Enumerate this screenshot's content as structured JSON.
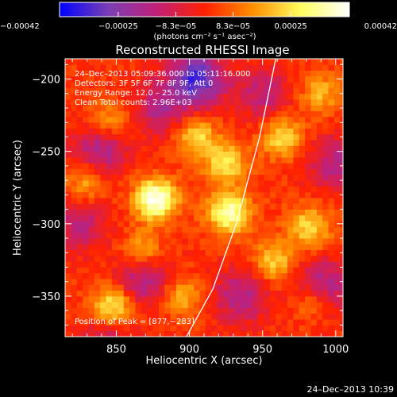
{
  "chart_data": {
    "type": "heatmap",
    "title": "Reconstructed RHESSI Image",
    "xlabel": "Heliocentric X (arcsec)",
    "ylabel": "Heliocentric Y (arcsec)",
    "xlim": [
      815,
      1005
    ],
    "ylim": [
      -378,
      -186
    ],
    "x_ticks": [
      850,
      900,
      950,
      1000
    ],
    "x_tick_labels": [
      "850",
      "900",
      "950",
      "1000"
    ],
    "y_ticks": [
      -200,
      -250,
      -300,
      -350
    ],
    "y_tick_labels": [
      "−200",
      "−250",
      "−300",
      "−350"
    ],
    "colorbar": {
      "min": -0.00042,
      "max": 0.00042,
      "ticks": [
        -0.00042,
        -0.00025,
        -8.3e-05,
        8.3e-05,
        0.00025,
        0.00042
      ],
      "tick_labels": [
        "−0.00042",
        "−0.00025",
        "−8.3e−05",
        "8.3e−05",
        "0.00025",
        "0.00042"
      ],
      "unit_label": "(photons cm⁻² s⁻¹ asec⁻²)",
      "colors": [
        "#0000ff",
        "#7a3fb6",
        "#c0207a",
        "#ff2000",
        "#ff9000",
        "#ffff60",
        "#ffffff"
      ]
    },
    "annotations": {
      "time_range": "24–Dec–2013 05:09:36.000 to 05:11:16.000",
      "detectors": "Detectors: 3F 5F 6F 7F 8F 9F, Att 0",
      "energy": "Energy Range: 12.0 – 25.0 keV",
      "clean": "Clean    Total counts: 2.96E+03",
      "peak": "Position of Peak = [877,−283]"
    },
    "limb_curve": {
      "x": [
        959,
        948,
        932,
        916,
        898
      ],
      "y": [
        -186,
        -240,
        -300,
        -345,
        -378
      ]
    },
    "emission_sources": [
      {
        "x": 877,
        "y": -283,
        "amplitude": 1.0
      },
      {
        "x": 927,
        "y": -292,
        "amplitude": 0.85
      },
      {
        "x": 925,
        "y": -258,
        "amplitude": 0.6
      },
      {
        "x": 905,
        "y": -240,
        "amplitude": 0.55
      },
      {
        "x": 963,
        "y": -240,
        "amplitude": 0.55
      },
      {
        "x": 848,
        "y": -357,
        "amplitude": 0.7
      },
      {
        "x": 985,
        "y": -352,
        "amplitude": 0.6
      },
      {
        "x": 982,
        "y": -302,
        "amplitude": 0.55
      },
      {
        "x": 958,
        "y": -326,
        "amplitude": 0.5
      },
      {
        "x": 830,
        "y": -270,
        "amplitude": 0.45
      },
      {
        "x": 868,
        "y": -320,
        "amplitude": 0.45
      },
      {
        "x": 895,
        "y": -350,
        "amplitude": 0.4
      },
      {
        "x": 990,
        "y": -210,
        "amplitude": 0.4
      },
      {
        "x": 845,
        "y": -228,
        "amplitude": 0.35
      }
    ],
    "negative_sources": [
      {
        "x": 905,
        "y": -200,
        "amplitude": 1.0
      },
      {
        "x": 990,
        "y": -345,
        "amplitude": 0.8
      },
      {
        "x": 838,
        "y": -250,
        "amplitude": 0.6
      },
      {
        "x": 868,
        "y": -338,
        "amplitude": 0.6
      },
      {
        "x": 935,
        "y": -350,
        "amplitude": 0.55
      },
      {
        "x": 880,
        "y": -220,
        "amplitude": 0.5
      },
      {
        "x": 950,
        "y": -210,
        "amplitude": 0.45
      },
      {
        "x": 845,
        "y": -380,
        "amplitude": 0.4
      },
      {
        "x": 1000,
        "y": -258,
        "amplitude": 0.5
      },
      {
        "x": 825,
        "y": -300,
        "amplitude": 0.45
      }
    ]
  },
  "footer": {
    "timestamp": "24–Dec–2013 10:39"
  }
}
